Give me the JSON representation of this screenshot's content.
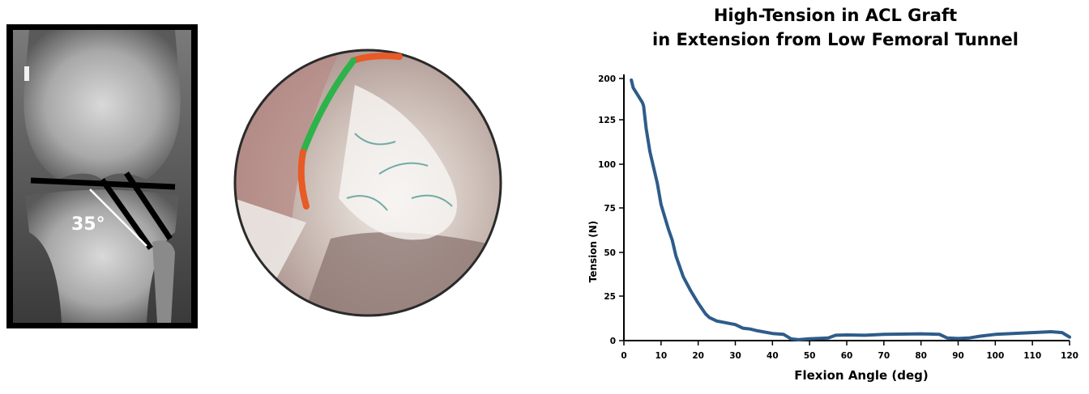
{
  "xray": {
    "angle_label": "35°",
    "line_color": "#000000",
    "guide_color": "#ffffff"
  },
  "arthroscopy": {
    "marker_colors": [
      "#e85a26",
      "#2db34a",
      "#e85a26"
    ]
  },
  "chart_data": {
    "type": "line",
    "title": "High-Tension in ACL Graft\nin Extension from Low Femoral Tunnel",
    "title_lines": [
      "High-Tension in ACL Graft",
      "in Extension from Low Femoral Tunnel"
    ],
    "xlabel": "Flexion Angle (deg)",
    "ylabel": "Tension (N)",
    "xlim": [
      0,
      120
    ],
    "xticks": [
      0,
      10,
      20,
      30,
      40,
      50,
      60,
      70,
      80,
      90,
      100,
      110,
      120
    ],
    "yticks": [
      0,
      25,
      50,
      75,
      100,
      125,
      200
    ],
    "ylim": [
      0,
      200
    ],
    "grid": false,
    "line_color": "#2e5c8a",
    "series": [
      {
        "x": [
          2,
          2.5,
          4,
          5,
          5.3,
          6,
          7,
          9,
          10,
          12,
          13,
          14,
          16,
          18,
          20,
          22,
          23,
          25,
          30,
          32,
          34,
          36,
          40,
          43,
          45,
          47,
          50,
          55,
          57,
          60,
          65,
          70,
          80,
          85,
          87,
          90,
          93,
          96,
          100,
          110,
          115,
          118,
          120
        ],
        "y": [
          197,
          183,
          167,
          156,
          150,
          120,
          107,
          89,
          77,
          63,
          57,
          48,
          36,
          28,
          21,
          15,
          13,
          11,
          9,
          7,
          6.5,
          5.5,
          4,
          3.5,
          1,
          0.5,
          1,
          1.5,
          3,
          3.2,
          3,
          3.5,
          3.8,
          3.5,
          1.5,
          1.2,
          1.5,
          2.5,
          3.5,
          4.5,
          5,
          4.5,
          2
        ]
      }
    ]
  }
}
